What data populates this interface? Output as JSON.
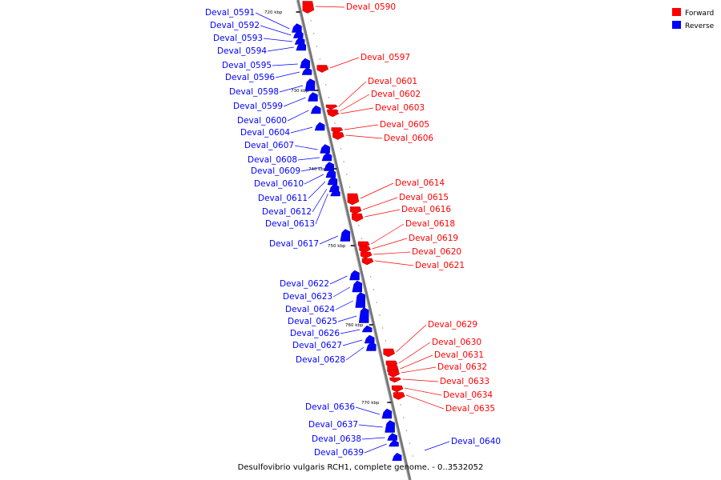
{
  "caption": "Desulfovibrio vulgaris RCH1, complete genome. - 0..3532052",
  "legend": [
    {
      "label": "Forward",
      "color": "#ff0000"
    },
    {
      "label": "Reverse",
      "color": "#0000ff"
    }
  ],
  "colors": {
    "forward": "#ff0000",
    "reverse": "#0000ff",
    "backbone": "#888888"
  },
  "ticks": [
    "720 kbp",
    "730 kbp",
    "740 kbp",
    "750 kbp",
    "760 kbp",
    "770 kbp"
  ],
  "genes_reverse": [
    "Deval_0591",
    "Deval_0592",
    "Deval_0593",
    "Deval_0594",
    "Deval_0595",
    "Deval_0596",
    "Deval_0598",
    "Deval_0599",
    "Deval_0600",
    "Deval_0604",
    "Deval_0607",
    "Deval_0608",
    "Deval_0609",
    "Deval_0610",
    "Deval_0611",
    "Deval_0612",
    "Deval_0613",
    "Deval_0617",
    "Deval_0622",
    "Deval_0623",
    "Deval_0624",
    "Deval_0625",
    "Deval_0626",
    "Deval_0627",
    "Deval_0628",
    "Deval_0636",
    "Deval_0637",
    "Deval_0638",
    "Deval_0639",
    "Deval_0640"
  ],
  "genes_forward": [
    "Deval_0590",
    "Deval_0597",
    "Deval_0601",
    "Deval_0602",
    "Deval_0603",
    "Deval_0605",
    "Deval_0606",
    "Deval_0614",
    "Deval_0615",
    "Deval_0616",
    "Deval_0618",
    "Deval_0619",
    "Deval_0620",
    "Deval_0621",
    "Deval_0629",
    "Deval_0630",
    "Deval_0631",
    "Deval_0632",
    "Deval_0633",
    "Deval_0634",
    "Deval_0635"
  ]
}
